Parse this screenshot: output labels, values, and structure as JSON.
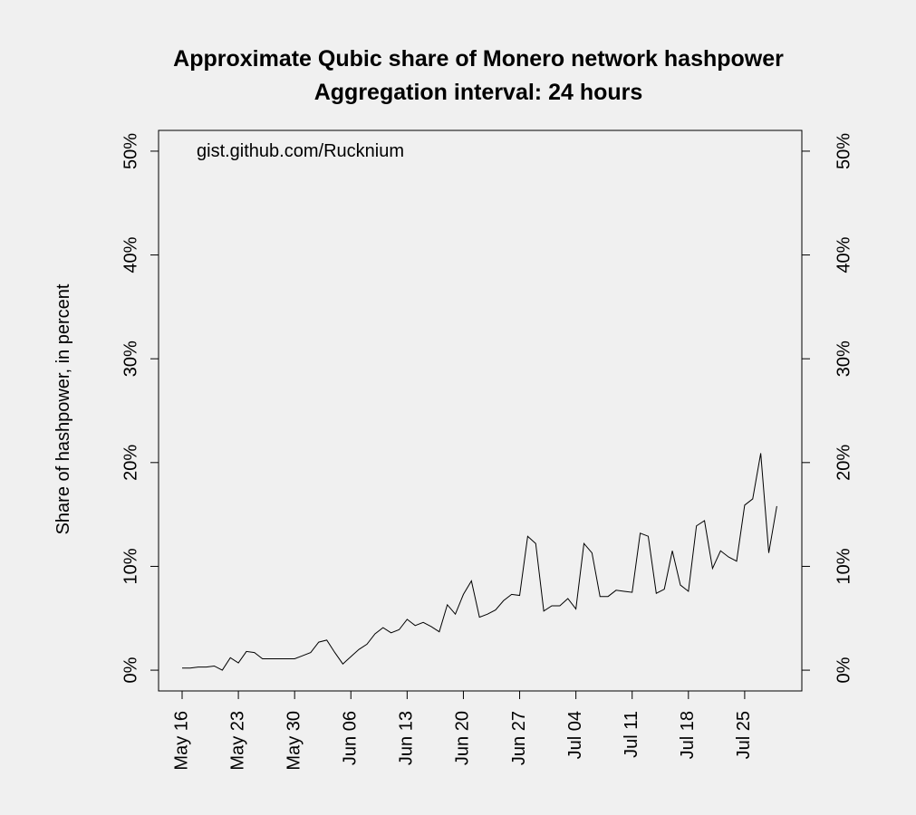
{
  "chart_data": {
    "type": "line",
    "title": "Approximate Qubic share of Monero network hashpower",
    "subtitle": "Aggregation interval: 24 hours",
    "annotation": "gist.github.com/Rucknium",
    "ylabel": "Share of hashpower, in percent",
    "categories": [
      "May 16",
      null,
      null,
      null,
      null,
      null,
      null,
      "May 23",
      null,
      null,
      null,
      null,
      null,
      null,
      "May 30",
      null,
      null,
      null,
      null,
      null,
      null,
      "Jun 06",
      null,
      null,
      null,
      null,
      null,
      null,
      "Jun 13",
      null,
      null,
      null,
      null,
      null,
      null,
      "Jun 20",
      null,
      null,
      null,
      null,
      null,
      null,
      "Jun 27",
      null,
      null,
      null,
      null,
      null,
      null,
      "Jul 04",
      null,
      null,
      null,
      null,
      null,
      null,
      "Jul 11",
      null,
      null,
      null,
      null,
      null,
      null,
      "Jul 18",
      null,
      null,
      null,
      null,
      null,
      null,
      "Jul 25",
      null,
      null,
      null,
      null
    ],
    "values": [
      0.2,
      0.2,
      0.3,
      0.3,
      0.4,
      0.0,
      1.2,
      0.7,
      1.8,
      1.7,
      1.1,
      1.1,
      1.1,
      1.1,
      1.1,
      1.4,
      1.7,
      2.7,
      2.9,
      1.7,
      0.6,
      1.3,
      2.0,
      2.5,
      3.5,
      4.1,
      3.6,
      3.9,
      4.9,
      4.3,
      4.6,
      4.2,
      3.7,
      6.3,
      5.4,
      7.3,
      8.6,
      5.1,
      5.4,
      5.8,
      6.7,
      7.3,
      7.2,
      12.9,
      12.2,
      5.7,
      6.2,
      6.2,
      6.9,
      5.9,
      12.2,
      11.3,
      7.1,
      7.1,
      7.7,
      7.6,
      7.5,
      13.2,
      12.9,
      7.4,
      7.8,
      11.5,
      8.2,
      7.6,
      13.9,
      14.4,
      9.8,
      11.5,
      10.9,
      10.5,
      15.9,
      16.5,
      20.9,
      11.3,
      15.8
    ],
    "color": "#000000",
    "ylim": [
      -2,
      52
    ],
    "yticks": [
      {
        "value": 0,
        "label": "0%"
      },
      {
        "value": 10,
        "label": "10%"
      },
      {
        "value": 20,
        "label": "20%"
      },
      {
        "value": 30,
        "label": "30%"
      },
      {
        "value": 40,
        "label": "40%"
      },
      {
        "value": 50,
        "label": "50%"
      }
    ],
    "y2lim": [
      -2,
      52
    ],
    "y2ticks": [
      {
        "value": 0,
        "label": "0%"
      },
      {
        "value": 10,
        "label": "10%"
      },
      {
        "value": 20,
        "label": "20%"
      },
      {
        "value": 30,
        "label": "30%"
      },
      {
        "value": 40,
        "label": "40%"
      },
      {
        "value": 50,
        "label": "50%"
      }
    ]
  }
}
